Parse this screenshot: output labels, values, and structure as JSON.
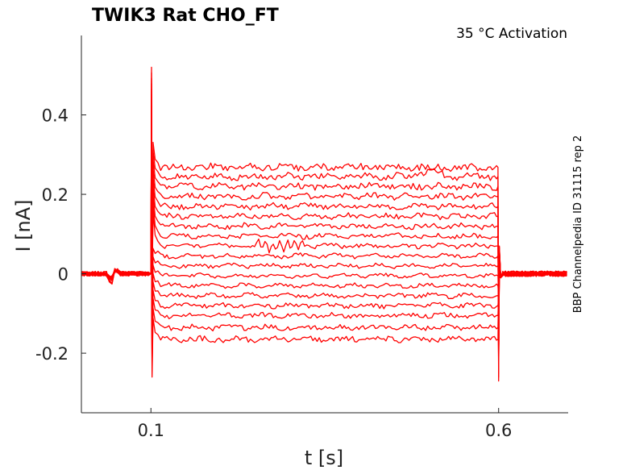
{
  "chart_data": {
    "type": "line",
    "title": "TWIK3  Rat  CHO_FT",
    "annotation": "35 °C  Activation",
    "side_label": "BBP Channelpedia ID 31115 rep 2",
    "xlabel": "t [s]",
    "ylabel": "I [nA]",
    "xlim": [
      0.0,
      0.7
    ],
    "ylim": [
      -0.35,
      0.6
    ],
    "x_ticks": [
      0.1,
      0.6
    ],
    "x_tick_labels": [
      "0.1",
      "0.6"
    ],
    "y_ticks": [
      -0.2,
      0,
      0.2,
      0.4
    ],
    "y_tick_labels": [
      "-0.2",
      "0",
      "0.2",
      "0.4"
    ],
    "grid": false,
    "trace_color": "#ff0000",
    "stimulus": {
      "onset": 0.1,
      "offset": 0.6
    },
    "steady_state_levels": [
      -0.165,
      -0.135,
      -0.105,
      -0.08,
      -0.055,
      -0.03,
      -0.005,
      0.02,
      0.045,
      0.07,
      0.095,
      0.12,
      0.145,
      0.17,
      0.195,
      0.22,
      0.245,
      0.268
    ],
    "onset_peak_max": 0.52,
    "onset_peak_min": -0.26,
    "offset_peak_min": -0.27
  }
}
